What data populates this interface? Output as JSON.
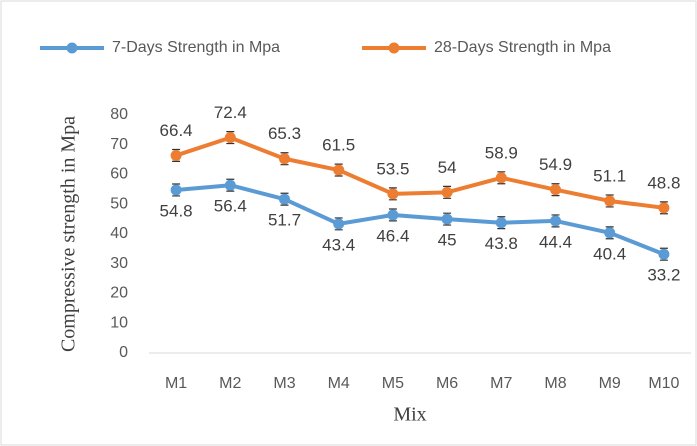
{
  "chart_data": {
    "type": "line",
    "xlabel": "Mix",
    "ylabel": "Compressive strength in Mpa",
    "categories": [
      "M1",
      "M2",
      "M3",
      "M4",
      "M5",
      "M6",
      "M7",
      "M8",
      "M9",
      "M10"
    ],
    "series": [
      {
        "name": "7-Days Strength in Mpa",
        "color": "#5b9bd5",
        "values": [
          54.8,
          56.4,
          51.7,
          43.4,
          46.4,
          45,
          43.8,
          44.4,
          40.4,
          33.2
        ],
        "errors": [
          2,
          2,
          2,
          2,
          2,
          2,
          2,
          2,
          2,
          2
        ],
        "label_position": "below"
      },
      {
        "name": "28-Days Strength in Mpa",
        "color": "#ed7d31",
        "values": [
          66.4,
          72.4,
          65.3,
          61.5,
          53.5,
          54,
          58.9,
          54.9,
          51.1,
          48.8
        ],
        "errors": [
          2,
          2,
          2,
          2,
          2,
          2,
          2,
          2,
          2,
          2
        ],
        "label_position": "above"
      }
    ],
    "ylim": [
      0,
      80
    ],
    "yticks": [
      0,
      10,
      20,
      30,
      40,
      50,
      60,
      70,
      80
    ],
    "grid": false,
    "legend": "top"
  }
}
